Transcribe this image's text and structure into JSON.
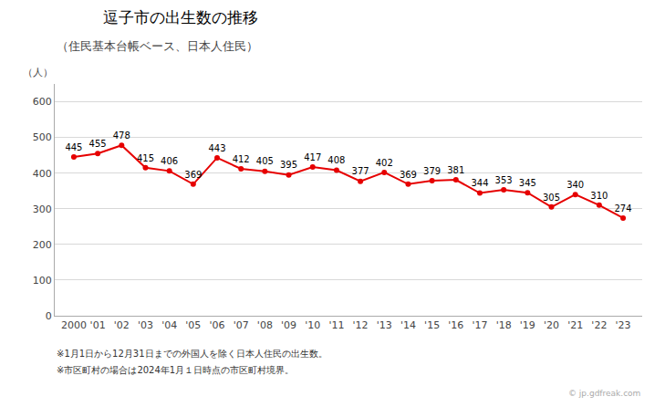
{
  "chart_data": {
    "type": "line",
    "title": "逗子市の出生数の推移",
    "subtitle": "（住民基本台帳ベース、日本人住民）",
    "ylabel": "（人）",
    "x": [
      2000,
      2001,
      2002,
      2003,
      2004,
      2005,
      2006,
      2007,
      2008,
      2009,
      2010,
      2011,
      2012,
      2013,
      2014,
      2015,
      2016,
      2017,
      2018,
      2019,
      2020,
      2021,
      2022,
      2023
    ],
    "values": [
      445,
      455,
      478,
      415,
      406,
      369,
      443,
      412,
      405,
      395,
      417,
      408,
      377,
      402,
      369,
      379,
      381,
      344,
      353,
      345,
      305,
      340,
      310,
      274
    ],
    "color": "#e60000",
    "marker": "circle",
    "line_style": "solid",
    "data_labels": true,
    "grid": true,
    "xlim": [
      1999.2,
      2023.8
    ],
    "xticks": [
      2000,
      {
        "value": 2001,
        "label": "'01"
      },
      {
        "value": 2002,
        "label": "'02"
      },
      {
        "value": 2003,
        "label": "'03"
      },
      {
        "value": 2004,
        "label": "'04"
      },
      {
        "value": 2005,
        "label": "'05"
      },
      {
        "value": 2006,
        "label": "'06"
      },
      {
        "value": 2007,
        "label": "'07"
      },
      {
        "value": 2008,
        "label": "'08"
      },
      {
        "value": 2009,
        "label": "'09"
      },
      {
        "value": 2010,
        "label": "'10"
      },
      {
        "value": 2011,
        "label": "'11"
      },
      {
        "value": 2012,
        "label": "'12"
      },
      {
        "value": 2013,
        "label": "'13"
      },
      {
        "value": 2014,
        "label": "'14"
      },
      {
        "value": 2015,
        "label": "'15"
      },
      {
        "value": 2016,
        "label": "'16"
      },
      {
        "value": 2017,
        "label": "'17"
      },
      {
        "value": 2018,
        "label": "'18"
      },
      {
        "value": 2019,
        "label": "'19"
      },
      {
        "value": 2020,
        "label": "'20"
      },
      {
        "value": 2021,
        "label": "'21"
      },
      {
        "value": 2022,
        "label": "'22"
      },
      {
        "value": 2023,
        "label": "'23"
      }
    ],
    "ylim": [
      0,
      650
    ],
    "yticks": [
      0,
      100,
      200,
      300,
      400,
      500,
      600
    ],
    "annotations": [
      "※1月1日から12月31日までの外国人を除く日本人住民の出生数。",
      "※市区町村の場合は2024年1月１日時点の市区町村境界。",
      "© jp.gdfreak.com"
    ]
  }
}
